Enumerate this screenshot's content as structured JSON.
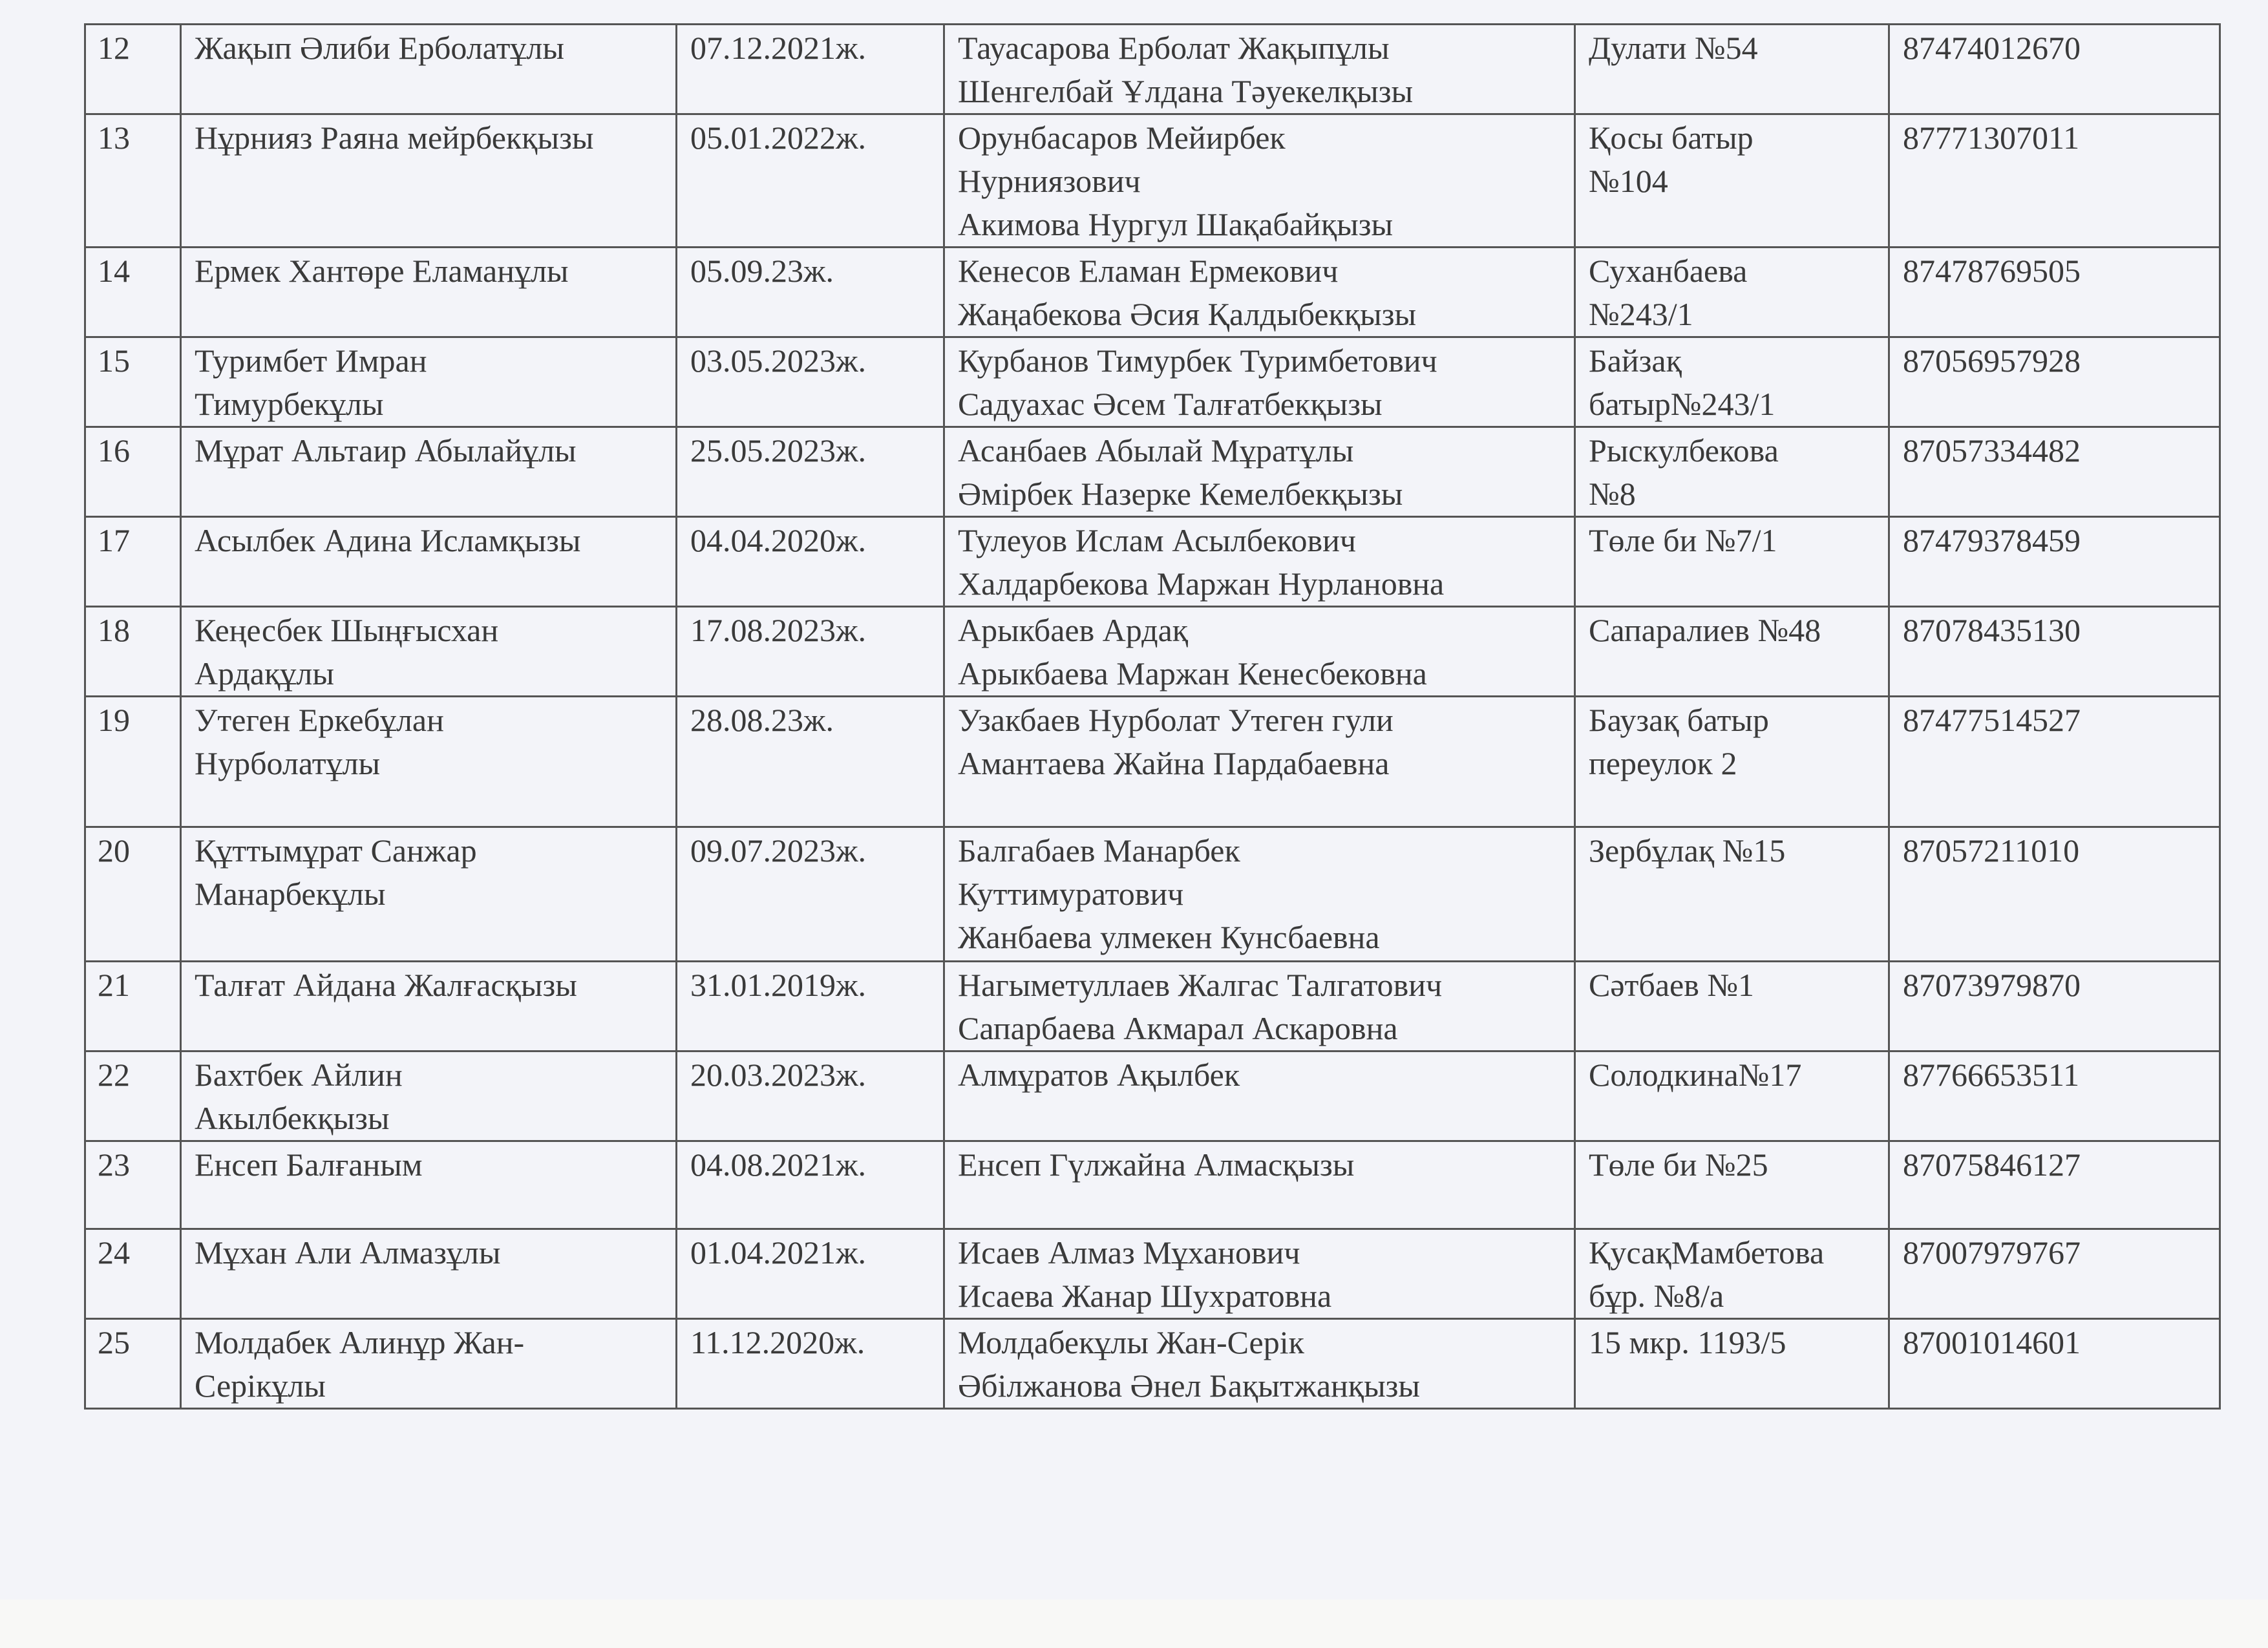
{
  "rows": [
    {
      "n": "12",
      "child": "Жақып Әлиби Ерболатұлы",
      "dob": "07.12.2021ж.",
      "parents": "Тауасарова Ерболат Жақыпұлы\nШенгелбай Ұлдана Тәуекелқызы",
      "address": "Дулати №54",
      "phone": "87474012670"
    },
    {
      "n": "13",
      "child": "Нұрнияз Раяна мейрбекқызы",
      "dob": "05.01.2022ж.",
      "parents": "Орунбасаров Мейирбек\nНурниязович\nАкимова Нургул Шақабайқызы",
      "address": "Қосы батыр\n№104",
      "phone": "87771307011"
    },
    {
      "n": "14",
      "child": "Ермек Хантөре Еламанұлы",
      "dob": "05.09.23ж.",
      "parents": "Кенесов Еламан Ермекович\nЖаңабекова Әсия Қалдыбекқызы",
      "address": "Суханбаева\n№243/1",
      "phone": "87478769505"
    },
    {
      "n": "15",
      "child": "Туримбет  Имран\nТимурбекұлы",
      "dob": "03.05.2023ж.",
      "parents": "Курбанов Тимурбек Туримбетович\nСадуахас Әсем Талғатбекқызы",
      "address": "Байзақ\nбатыр№243/1",
      "phone": "87056957928"
    },
    {
      "n": "16",
      "child": "Мұрат Альтаир Абылайұлы",
      "dob": "25.05.2023ж.",
      "parents": "Асанбаев Абылай Мұратұлы\nӘмірбек Назерке Кемелбекқызы",
      "address": "Рыскулбекова\n№8",
      "phone": "87057334482"
    },
    {
      "n": "17",
      "child": "Асылбек Адина Исламқызы",
      "dob": "04.04.2020ж.",
      "parents": "Тулеуов Ислам Асылбекович\nХалдарбекова Маржан Нурлановна",
      "address": "Төле би №7/1",
      "phone": "87479378459"
    },
    {
      "n": "18",
      "child": "Кеңесбек Шыңғысхан\nАрдақұлы",
      "dob": "17.08.2023ж.",
      "parents": "Арыкбаев Ардақ\nАрыкбаева Маржан Кенесбековна",
      "address": "Сапаралиев №48",
      "phone": "87078435130"
    },
    {
      "n": "19",
      "child": "Утеген Еркебұлан\nНурболатұлы",
      "dob": "28.08.23ж.",
      "parents": "Узакбаев Нурболат Утеген гули\nАмантаева Жайна Пардабаевна",
      "address": "Баузақ батыр\nпереулок 2",
      "phone": "87477514527"
    },
    {
      "n": "20",
      "child": "Құттымұрат Санжар\nМанарбекұлы",
      "dob": "09.07.2023ж.",
      "parents": "Балгабаев Манарбек\nКуттимуратович\nЖанбаева улмекен Кунсбаевна",
      "address": "Зербұлақ №15",
      "phone": "87057211010"
    },
    {
      "n": "21",
      "child": "Талғат Айдана Жалғасқызы",
      "dob": "31.01.2019ж.",
      "parents": "Нагыметуллаев Жалгас Талгатович\n Сапарбаева Акмарал Аскаровна",
      "address": "Сәтбаев №1",
      "phone": "87073979870"
    },
    {
      "n": "22",
      "child": "Бахтбек Айлин\nАкылбекқызы",
      "dob": "20.03.2023ж.",
      "parents": "Алмұратов Ақылбек",
      "address": " Солодкина№17",
      "phone": "87766653511"
    },
    {
      "n": "23",
      "child": "Енсеп Балғаным",
      "dob": "04.08.2021ж.",
      "parents": "Енсеп Гүлжайна Алмасқызы",
      "address": "Төле би №25",
      "phone": "87075846127"
    },
    {
      "n": "24",
      "child": "Мұхан Али Алмазұлы",
      "dob": "01.04.2021ж.",
      "parents": "Исаев Алмаз Мұханович\nИсаева Жанар Шухратовна",
      "address": "ҚусақМамбетова\nбұр. №8/а",
      "phone": "87007979767"
    },
    {
      "n": "25",
      "child": "Молдабек Алинұр Жан-\nСерікұлы",
      "dob": "11.12.2020ж.",
      "parents": "Молдабекұлы Жан-Серік\nӘбілжанова Әнел Бақытжанқызы",
      "address": "15 мкр. 1193/5",
      "phone": "87001014601"
    }
  ]
}
